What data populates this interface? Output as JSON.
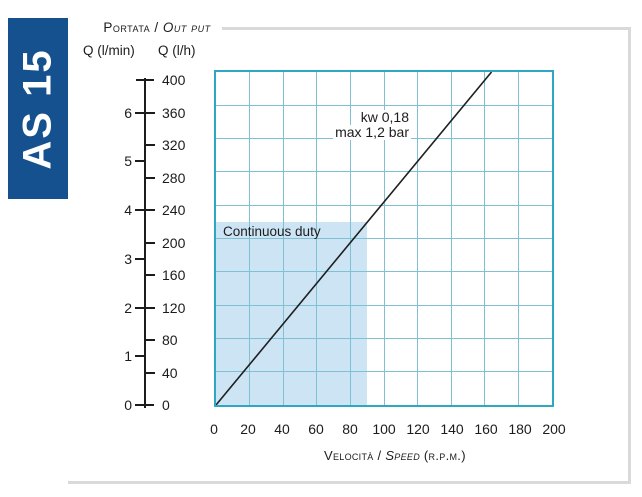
{
  "banner": {
    "label": "AS 15"
  },
  "header": {
    "title_normal": "Portata / ",
    "title_italic": "Out put",
    "left_unit": "Q (l/min)",
    "right_unit": "Q (l/h)"
  },
  "y_scale": {
    "lh_ticks": [
      0,
      40,
      80,
      120,
      160,
      200,
      240,
      280,
      320,
      360,
      400
    ],
    "lmin_ticks": [
      0,
      1,
      2,
      3,
      4,
      5,
      6
    ],
    "lh_per_lmin": 60,
    "lh_max": 400
  },
  "x_axis": {
    "ticks": [
      0,
      20,
      40,
      60,
      80,
      100,
      120,
      140,
      160,
      180,
      200
    ],
    "title_normal": "Velocità / ",
    "title_italic": "Speed",
    "title_suffix": " (r.p.m.)"
  },
  "chart_data": {
    "type": "line",
    "title": "",
    "xlabel": "Velocità / Speed (R.P.M.)",
    "ylabel_left": "Q (l/min)",
    "ylabel_right": "Q (l/h)",
    "ylabel_group": "Portata / Out put",
    "xlim": [
      0,
      200
    ],
    "ylim": [
      0,
      400
    ],
    "x_tick_step": 20,
    "y_tick_step": 40,
    "grid": true,
    "series": [
      {
        "name": "flow-vs-speed",
        "x": [
          0,
          164
        ],
        "y": [
          0,
          400
        ]
      }
    ],
    "annotations": [
      "kw 0,18",
      "max 1,2 bar"
    ],
    "regions": [
      {
        "label": "Continuous duty",
        "x": [
          0,
          90
        ],
        "y": [
          0,
          220
        ]
      }
    ]
  },
  "colors": {
    "banner_bg": "#16518f",
    "banner_fg": "#ffffff",
    "chart_border": "#2da7c2",
    "grid_line": "#7fc0d2",
    "region_fill": "#cde4f5",
    "series_line": "#1f1f1f",
    "panel_border": "#d9d9d9",
    "text": "#1c1c1c"
  }
}
